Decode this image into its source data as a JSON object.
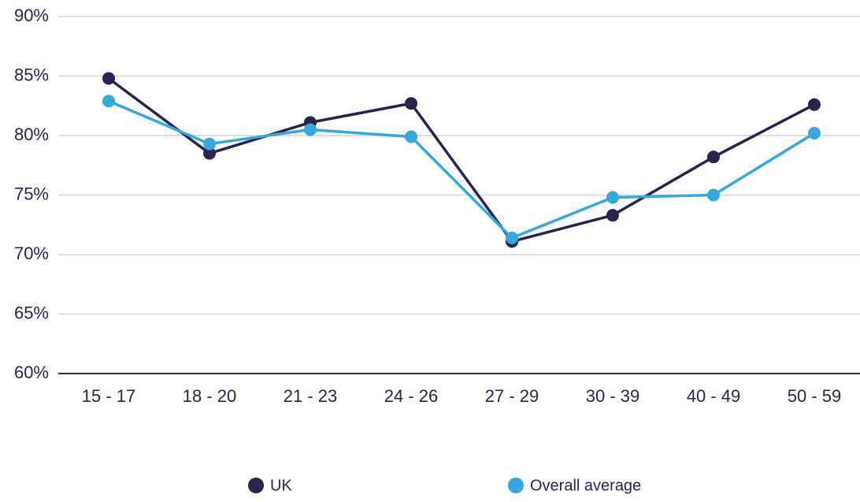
{
  "chart_data": {
    "type": "line",
    "categories": [
      "15 - 17",
      "18 - 20",
      "21 - 23",
      "24 - 26",
      "27 - 29",
      "30 - 39",
      "40 - 49",
      "50 - 59"
    ],
    "series": [
      {
        "name": "UK",
        "color": "#2a2350",
        "values": [
          84.8,
          78.5,
          81.1,
          82.7,
          71.1,
          73.3,
          78.2,
          82.6
        ]
      },
      {
        "name": "Overall average",
        "color": "#35a8dd",
        "values": [
          82.9,
          79.3,
          80.5,
          79.9,
          71.4,
          74.8,
          75.0,
          80.2
        ]
      }
    ],
    "ylim": [
      60,
      90
    ],
    "yticks": [
      {
        "value": 60,
        "label": "60%"
      },
      {
        "value": 65,
        "label": "65%"
      },
      {
        "value": 70,
        "label": "70%"
      },
      {
        "value": 75,
        "label": "75%"
      },
      {
        "value": 80,
        "label": "80%"
      },
      {
        "value": 85,
        "label": "85%"
      },
      {
        "value": 90,
        "label": "90%"
      }
    ],
    "grid": true,
    "legend": "bottom"
  }
}
